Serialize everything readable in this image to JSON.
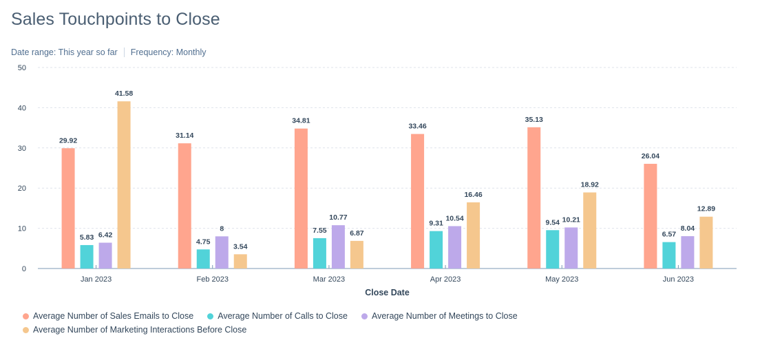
{
  "header": {
    "title": "Sales Touchpoints to Close",
    "date_range": "Date range: This year so far",
    "frequency": "Frequency: Monthly"
  },
  "chart_data": {
    "type": "bar",
    "xlabel": "Close Date",
    "ylabel": "",
    "ylim": [
      0,
      50
    ],
    "yticks": [
      0,
      10,
      20,
      30,
      40,
      50
    ],
    "grid": true,
    "legend_position": "bottom",
    "categories": [
      "Jan 2023",
      "Feb 2023",
      "Mar 2023",
      "Apr 2023",
      "May 2023",
      "Jun 2023"
    ],
    "series": [
      {
        "name": "Average Number of Sales Emails to Close",
        "color": "#ffa58e",
        "values": [
          29.92,
          31.14,
          34.81,
          33.46,
          35.13,
          26.04
        ]
      },
      {
        "name": "Average Number of Calls to Close",
        "color": "#51d3d9",
        "values": [
          5.83,
          4.75,
          7.55,
          9.31,
          9.54,
          6.57
        ]
      },
      {
        "name": "Average Number of Meetings to Close",
        "color": "#bda9ea",
        "values": [
          6.42,
          8,
          10.77,
          10.54,
          10.21,
          8.04
        ]
      },
      {
        "name": "Average Number of Marketing Interactions Before Close",
        "color": "#f5c78e",
        "values": [
          41.58,
          3.54,
          6.87,
          16.46,
          18.92,
          12.89
        ]
      }
    ]
  }
}
